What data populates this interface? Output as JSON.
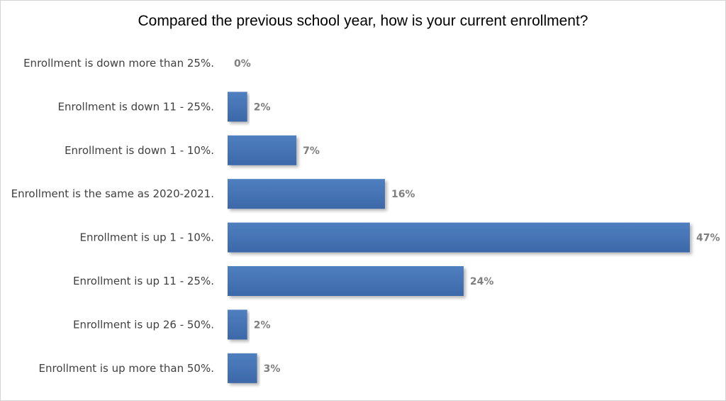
{
  "chart_data": {
    "type": "bar",
    "orientation": "horizontal",
    "title": "Compared the previous school year, how is your current enrollment?",
    "categories": [
      "Enrollment is down more than 25%.",
      "Enrollment is down 11 - 25%.",
      "Enrollment is down 1 - 10%.",
      "Enrollment is the same as 2020-2021.",
      "Enrollment is up 1 - 10%.",
      "Enrollment is up 11 - 25%.",
      "Enrollment is up 26 - 50%.",
      "Enrollment is up more than 50%."
    ],
    "values": [
      0,
      2,
      7,
      16,
      47,
      24,
      2,
      3
    ],
    "value_labels": [
      "0%",
      "2%",
      "7%",
      "16%",
      "47%",
      "24%",
      "2%",
      "3%"
    ],
    "unit": "%",
    "xlim": [
      0,
      47
    ],
    "grid": false,
    "legend": "none",
    "colors": {
      "bar": "#4f7fbf",
      "bar_dark": "#3c68a8",
      "value_label": "#7f7f7f",
      "category_label": "#404040"
    }
  }
}
